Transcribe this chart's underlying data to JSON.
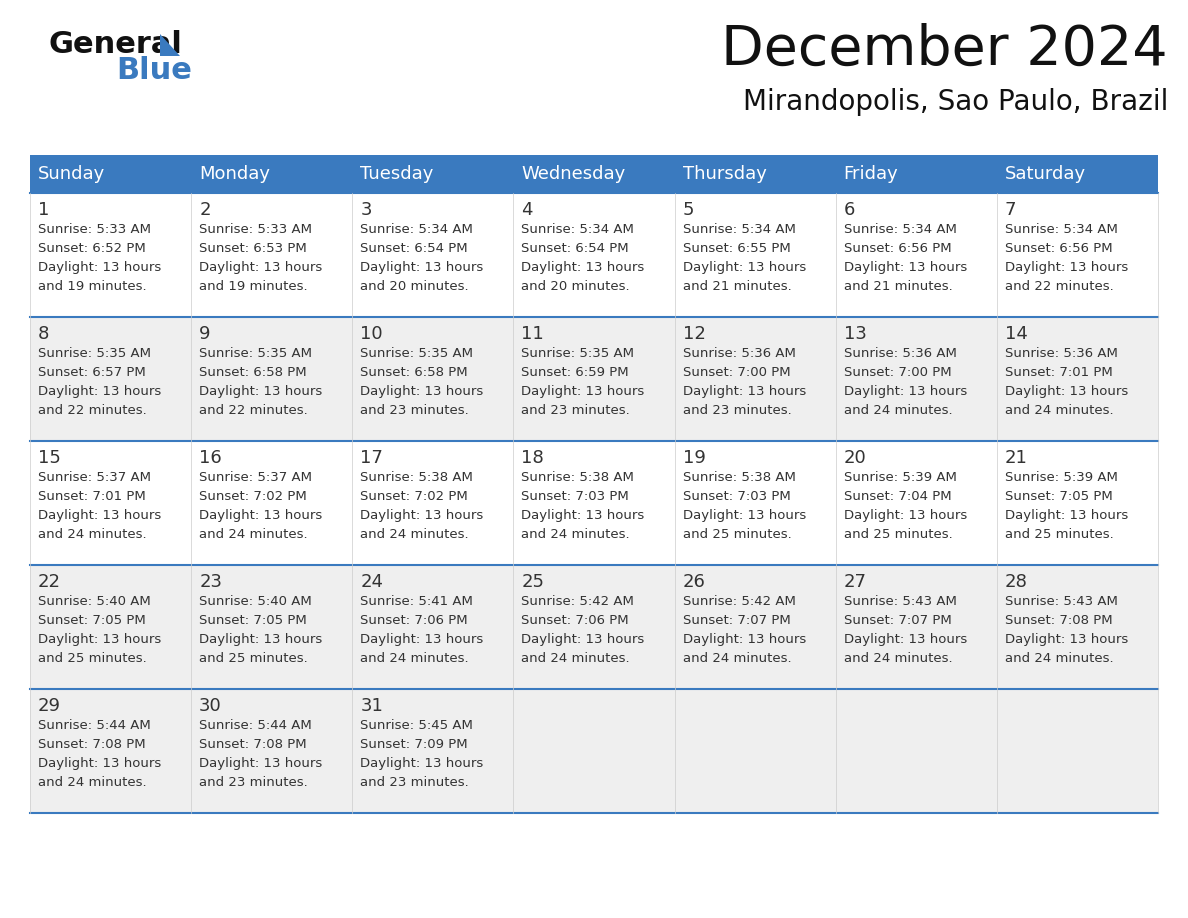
{
  "title": "December 2024",
  "subtitle": "Mirandopolis, Sao Paulo, Brazil",
  "header_color": "#3a7abf",
  "header_text_color": "#ffffff",
  "day_names": [
    "Sunday",
    "Monday",
    "Tuesday",
    "Wednesday",
    "Thursday",
    "Friday",
    "Saturday"
  ],
  "bg_color": "#ffffff",
  "row_bg": [
    "#ffffff",
    "#eeeeee",
    "#ffffff",
    "#eeeeee",
    "#eeeeee"
  ],
  "border_color": "#3a7abf",
  "text_color": "#333333",
  "days": [
    {
      "day": 1,
      "col": 0,
      "row": 0,
      "sunrise": "5:33 AM",
      "sunset": "6:52 PM",
      "daylight": "13 hours and 19 minutes."
    },
    {
      "day": 2,
      "col": 1,
      "row": 0,
      "sunrise": "5:33 AM",
      "sunset": "6:53 PM",
      "daylight": "13 hours and 19 minutes."
    },
    {
      "day": 3,
      "col": 2,
      "row": 0,
      "sunrise": "5:34 AM",
      "sunset": "6:54 PM",
      "daylight": "13 hours and 20 minutes."
    },
    {
      "day": 4,
      "col": 3,
      "row": 0,
      "sunrise": "5:34 AM",
      "sunset": "6:54 PM",
      "daylight": "13 hours and 20 minutes."
    },
    {
      "day": 5,
      "col": 4,
      "row": 0,
      "sunrise": "5:34 AM",
      "sunset": "6:55 PM",
      "daylight": "13 hours and 21 minutes."
    },
    {
      "day": 6,
      "col": 5,
      "row": 0,
      "sunrise": "5:34 AM",
      "sunset": "6:56 PM",
      "daylight": "13 hours and 21 minutes."
    },
    {
      "day": 7,
      "col": 6,
      "row": 0,
      "sunrise": "5:34 AM",
      "sunset": "6:56 PM",
      "daylight": "13 hours and 22 minutes."
    },
    {
      "day": 8,
      "col": 0,
      "row": 1,
      "sunrise": "5:35 AM",
      "sunset": "6:57 PM",
      "daylight": "13 hours and 22 minutes."
    },
    {
      "day": 9,
      "col": 1,
      "row": 1,
      "sunrise": "5:35 AM",
      "sunset": "6:58 PM",
      "daylight": "13 hours and 22 minutes."
    },
    {
      "day": 10,
      "col": 2,
      "row": 1,
      "sunrise": "5:35 AM",
      "sunset": "6:58 PM",
      "daylight": "13 hours and 23 minutes."
    },
    {
      "day": 11,
      "col": 3,
      "row": 1,
      "sunrise": "5:35 AM",
      "sunset": "6:59 PM",
      "daylight": "13 hours and 23 minutes."
    },
    {
      "day": 12,
      "col": 4,
      "row": 1,
      "sunrise": "5:36 AM",
      "sunset": "7:00 PM",
      "daylight": "13 hours and 23 minutes."
    },
    {
      "day": 13,
      "col": 5,
      "row": 1,
      "sunrise": "5:36 AM",
      "sunset": "7:00 PM",
      "daylight": "13 hours and 24 minutes."
    },
    {
      "day": 14,
      "col": 6,
      "row": 1,
      "sunrise": "5:36 AM",
      "sunset": "7:01 PM",
      "daylight": "13 hours and 24 minutes."
    },
    {
      "day": 15,
      "col": 0,
      "row": 2,
      "sunrise": "5:37 AM",
      "sunset": "7:01 PM",
      "daylight": "13 hours and 24 minutes."
    },
    {
      "day": 16,
      "col": 1,
      "row": 2,
      "sunrise": "5:37 AM",
      "sunset": "7:02 PM",
      "daylight": "13 hours and 24 minutes."
    },
    {
      "day": 17,
      "col": 2,
      "row": 2,
      "sunrise": "5:38 AM",
      "sunset": "7:02 PM",
      "daylight": "13 hours and 24 minutes."
    },
    {
      "day": 18,
      "col": 3,
      "row": 2,
      "sunrise": "5:38 AM",
      "sunset": "7:03 PM",
      "daylight": "13 hours and 24 minutes."
    },
    {
      "day": 19,
      "col": 4,
      "row": 2,
      "sunrise": "5:38 AM",
      "sunset": "7:03 PM",
      "daylight": "13 hours and 25 minutes."
    },
    {
      "day": 20,
      "col": 5,
      "row": 2,
      "sunrise": "5:39 AM",
      "sunset": "7:04 PM",
      "daylight": "13 hours and 25 minutes."
    },
    {
      "day": 21,
      "col": 6,
      "row": 2,
      "sunrise": "5:39 AM",
      "sunset": "7:05 PM",
      "daylight": "13 hours and 25 minutes."
    },
    {
      "day": 22,
      "col": 0,
      "row": 3,
      "sunrise": "5:40 AM",
      "sunset": "7:05 PM",
      "daylight": "13 hours and 25 minutes."
    },
    {
      "day": 23,
      "col": 1,
      "row": 3,
      "sunrise": "5:40 AM",
      "sunset": "7:05 PM",
      "daylight": "13 hours and 25 minutes."
    },
    {
      "day": 24,
      "col": 2,
      "row": 3,
      "sunrise": "5:41 AM",
      "sunset": "7:06 PM",
      "daylight": "13 hours and 24 minutes."
    },
    {
      "day": 25,
      "col": 3,
      "row": 3,
      "sunrise": "5:42 AM",
      "sunset": "7:06 PM",
      "daylight": "13 hours and 24 minutes."
    },
    {
      "day": 26,
      "col": 4,
      "row": 3,
      "sunrise": "5:42 AM",
      "sunset": "7:07 PM",
      "daylight": "13 hours and 24 minutes."
    },
    {
      "day": 27,
      "col": 5,
      "row": 3,
      "sunrise": "5:43 AM",
      "sunset": "7:07 PM",
      "daylight": "13 hours and 24 minutes."
    },
    {
      "day": 28,
      "col": 6,
      "row": 3,
      "sunrise": "5:43 AM",
      "sunset": "7:08 PM",
      "daylight": "13 hours and 24 minutes."
    },
    {
      "day": 29,
      "col": 0,
      "row": 4,
      "sunrise": "5:44 AM",
      "sunset": "7:08 PM",
      "daylight": "13 hours and 24 minutes."
    },
    {
      "day": 30,
      "col": 1,
      "row": 4,
      "sunrise": "5:44 AM",
      "sunset": "7:08 PM",
      "daylight": "13 hours and 23 minutes."
    },
    {
      "day": 31,
      "col": 2,
      "row": 4,
      "sunrise": "5:45 AM",
      "sunset": "7:09 PM",
      "daylight": "13 hours and 23 minutes."
    }
  ]
}
